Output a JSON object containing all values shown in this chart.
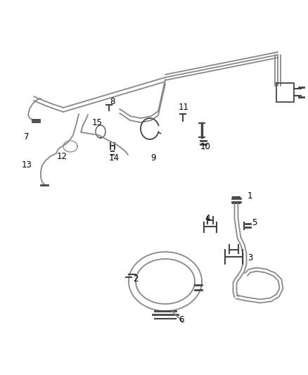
{
  "background_color": "#ffffff",
  "line_color": "#888888",
  "dark_color": "#444444",
  "label_color": "#000000",
  "label_fontsize": 8.5,
  "fig_width": 4.38,
  "fig_height": 5.33,
  "dpi": 100
}
